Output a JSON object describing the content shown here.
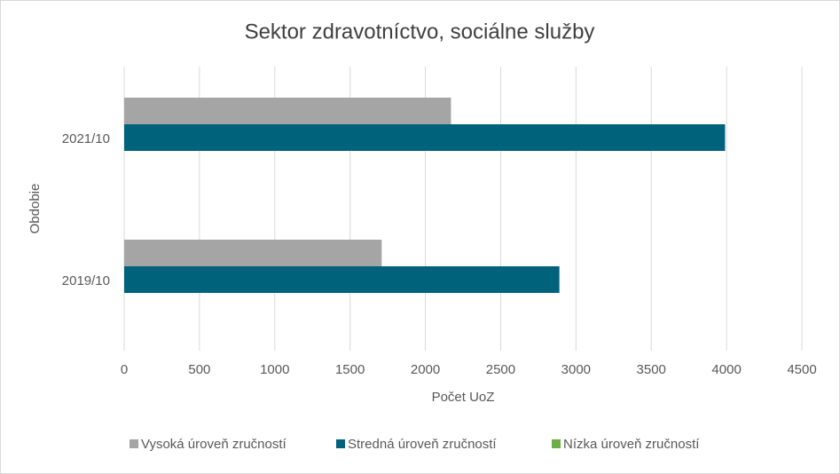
{
  "chart_data": {
    "type": "hbar",
    "title": "Sektor zdravotníctvo, sociálne služby",
    "x_label": "Počet UoZ",
    "y_label": "Obdobie",
    "categories": [
      "2021/10",
      "2019/10"
    ],
    "series": [
      {
        "name": "Vysoká úroveň zručností",
        "color": "#a5a5a5",
        "values": [
          2170,
          1710
        ]
      },
      {
        "name": "Stredná úroveň zručností",
        "color": "#00627b",
        "values": [
          3990,
          2890
        ]
      },
      {
        "name": "Nízka úroveň zručností",
        "color": "#70ad47",
        "values": [
          null,
          null
        ]
      }
    ],
    "xlim": [
      0,
      4500
    ],
    "xticks": [
      0,
      500,
      1000,
      1500,
      2000,
      2500,
      3000,
      3500,
      4000,
      4500
    ],
    "grid": true,
    "legend": "bottom"
  }
}
